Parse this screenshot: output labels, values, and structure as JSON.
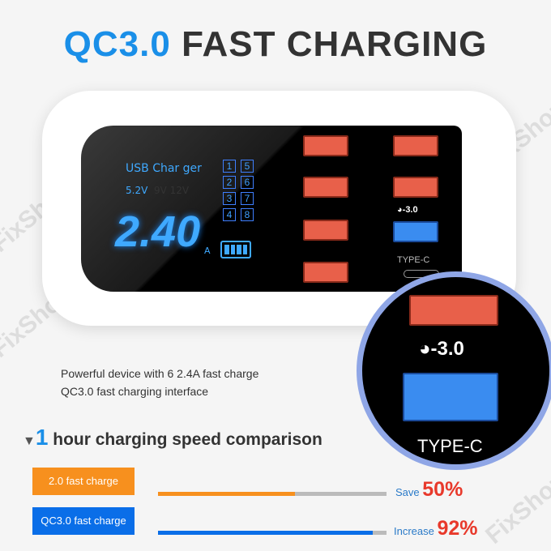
{
  "title": {
    "highlight": "QC3.0",
    "rest": "FAST CHARGING"
  },
  "watermark": "FixShop",
  "display": {
    "brand": "USB Char ger",
    "voltage_active": "5.2V",
    "voltage_other": [
      "9V",
      "12V"
    ],
    "current": "2.40",
    "unit": "A",
    "ports": [
      "1",
      "5",
      "2",
      "6",
      "3",
      "7",
      "4",
      "8"
    ]
  },
  "charger": {
    "qc_label": "-3.0",
    "typec_label": "TYPE-C"
  },
  "magnifier": {
    "qc_label": "-3.0",
    "typec_label": "TYPE-C"
  },
  "description": [
    "Powerful device with 6 2.4A fast charge",
    "QC3.0 fast charging interface"
  ],
  "comparison": {
    "marker": "▼",
    "number": "1",
    "heading": " hour charging speed comparison",
    "rows": [
      {
        "label": "2.0 fast charge",
        "result_label": "Save",
        "result_value": "50%",
        "fill_percent": 60,
        "color": "#f7901e"
      },
      {
        "label": "QC3.0 fast charge",
        "result_label": "Increase",
        "result_value": "92%",
        "fill_percent": 94,
        "color": "#0a6ee8"
      }
    ]
  },
  "colors": {
    "accent_blue": "#1a8fe8",
    "highlight_red": "#e8392b"
  }
}
